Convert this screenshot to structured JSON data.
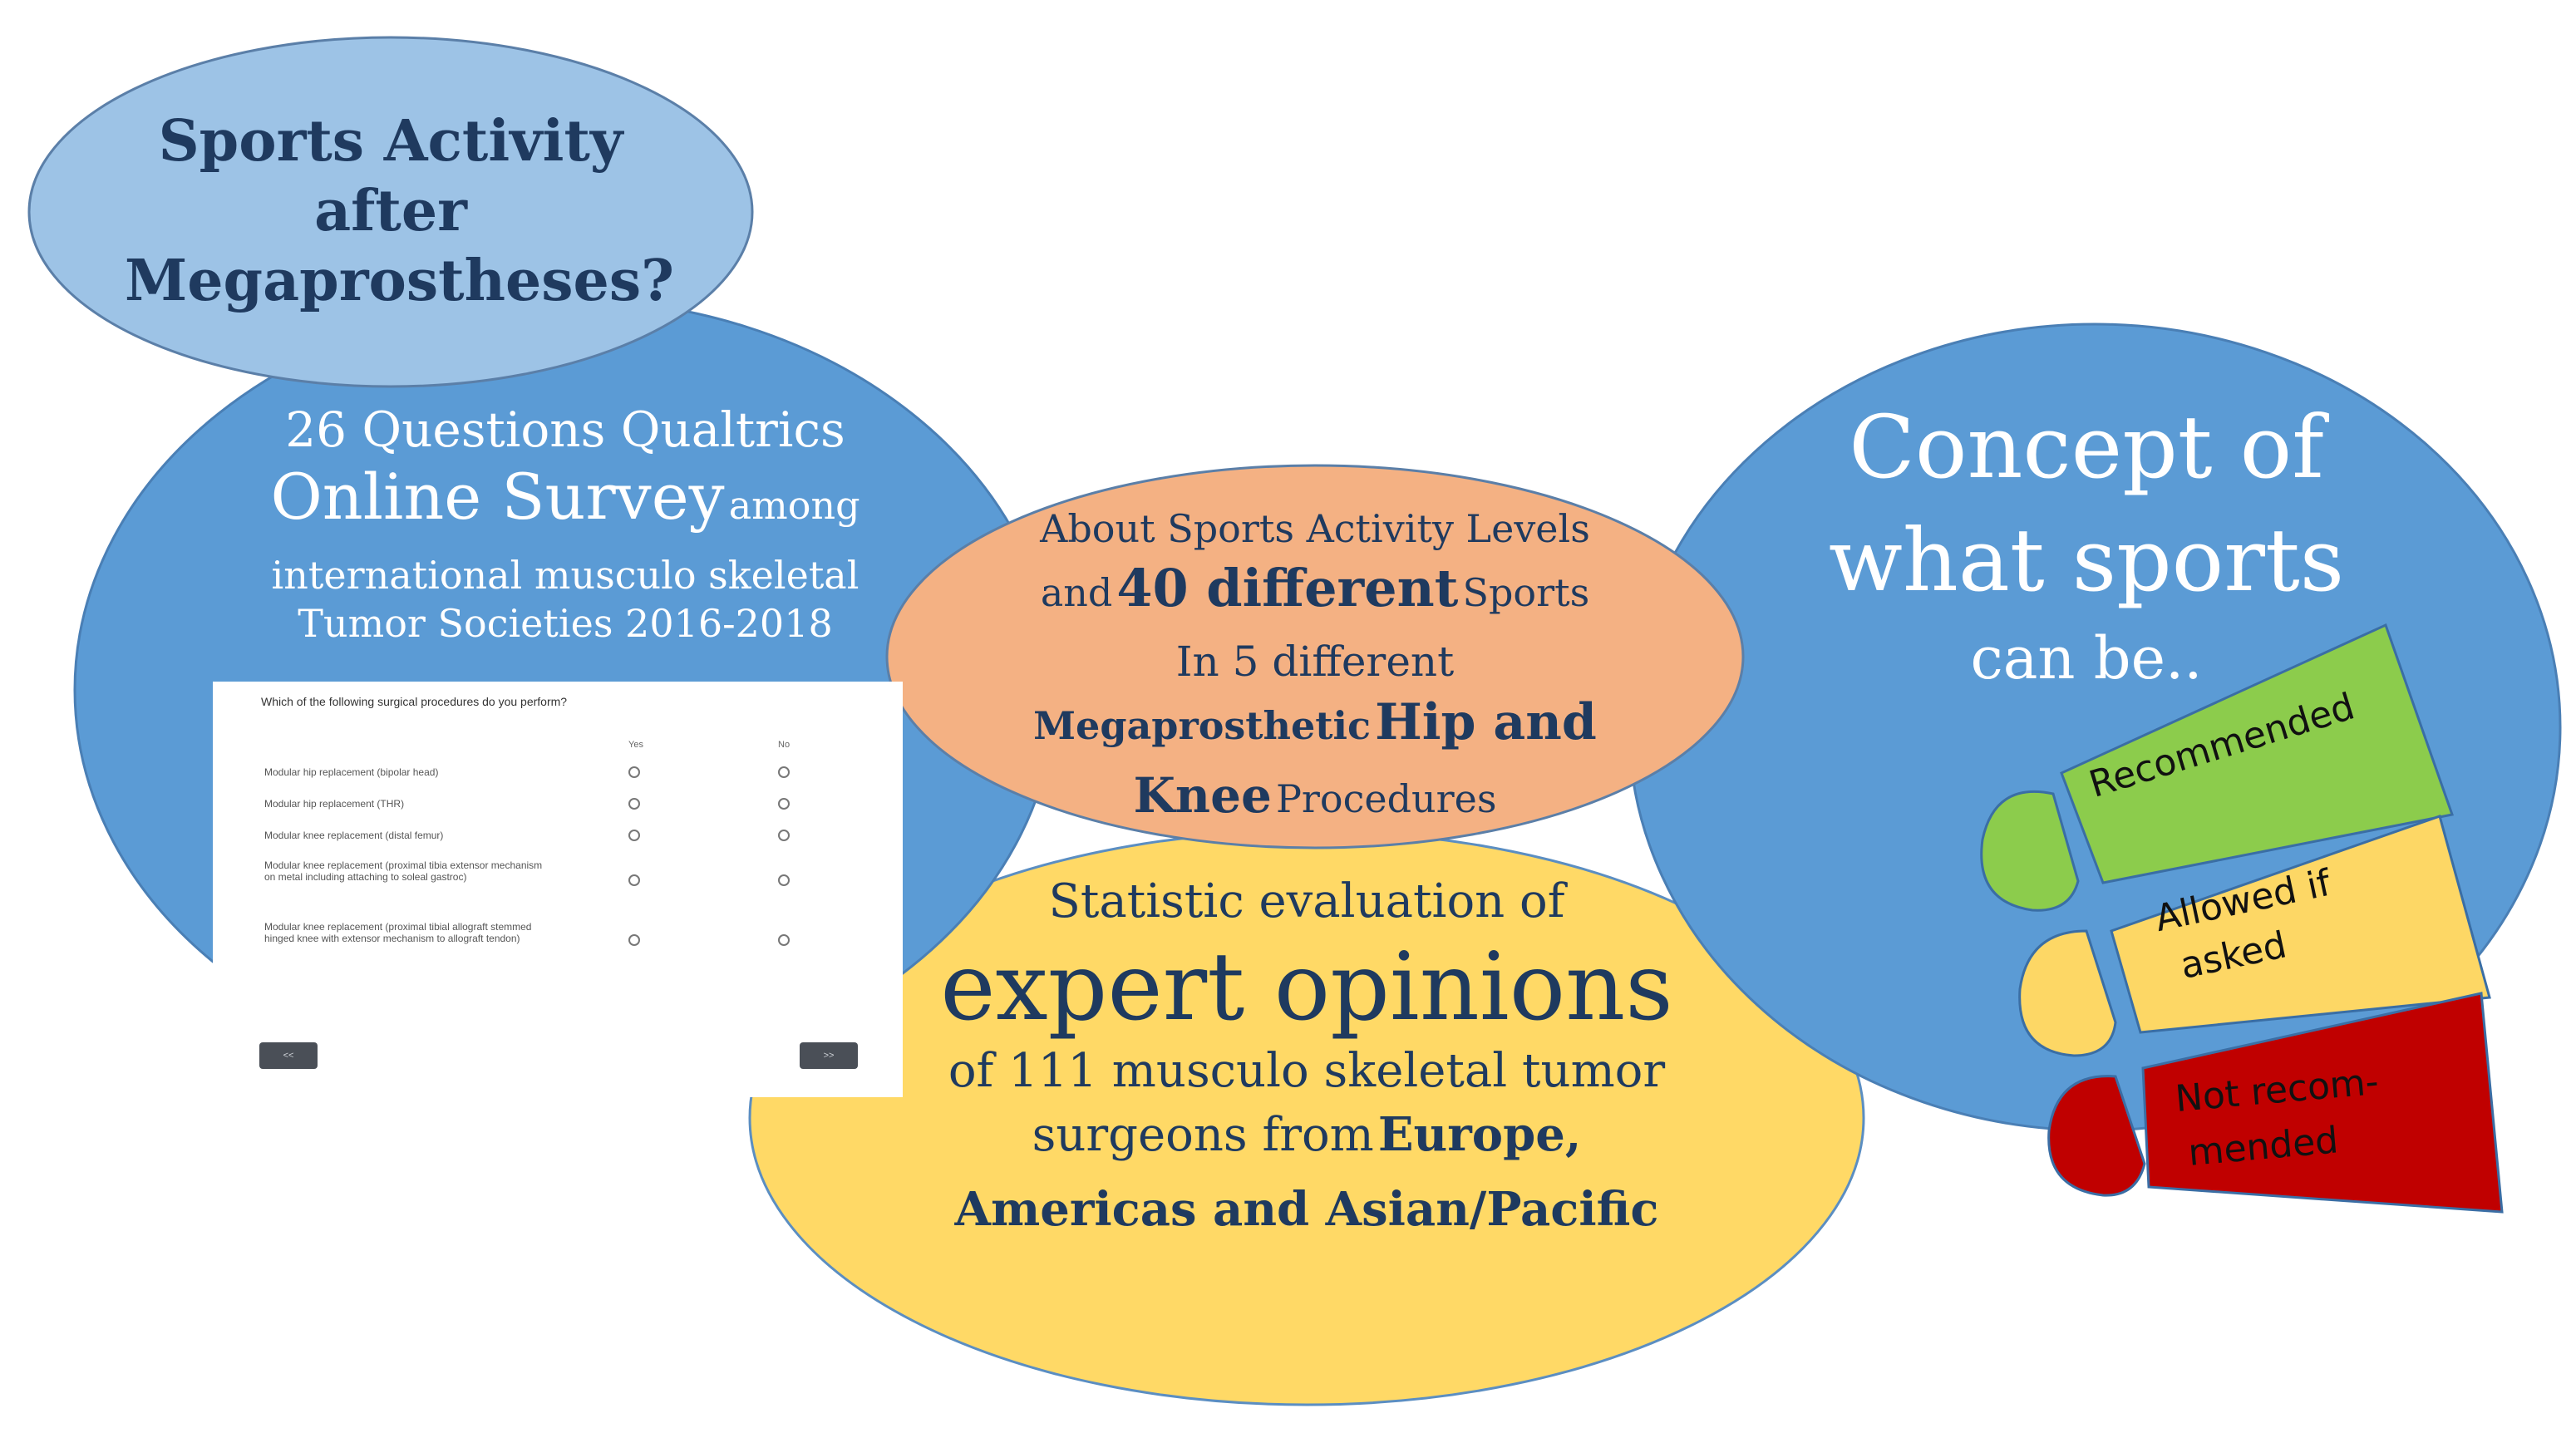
{
  "title_bubble": {
    "line1": "Sports Activity",
    "line2": "after",
    "line3": "Megaprostheses?"
  },
  "survey_circle": {
    "line1": "26 Questions Qualtrics",
    "big": "Online Survey",
    "small": "among",
    "line3": "international musculo skeletal",
    "line4": "Tumor Societies 2016-2018"
  },
  "survey_screenshot": {
    "question": "Which of the following surgical procedures do you perform?",
    "col_yes": "Yes",
    "col_no": "No",
    "rows": [
      "Modular hip replacement (bipolar head)",
      "Modular hip replacement (THR)",
      "Modular knee replacement (distal femur)",
      "Modular knee replacement (proximal tibia extensor mechanism on metal including attaching to soleal gastroc)",
      "Modular knee replacement (proximal tibial allograft stemmed hinged knee with extensor mechanism to allograft tendon)"
    ],
    "back_label": "<<",
    "next_label": ">>"
  },
  "about_oval": {
    "line1": "About Sports Activity Levels",
    "line2a": "and",
    "line2b": "40 different",
    "line2c": "Sports",
    "line3": "In 5 different",
    "line4a": "Megaprosthetic",
    "line4b": "Hip and",
    "line5a": "Knee",
    "line5b": "Procedures"
  },
  "expert_circle": {
    "line1": "Statistic evaluation of",
    "big": "expert opinions",
    "line3": "of 111 musculo skeletal tumor",
    "line4a": "surgeons from",
    "line4b": "Europe,",
    "line5": "Americas and Asian/Pacific"
  },
  "concept_circle": {
    "line1": "Concept of",
    "line2": "what sports",
    "line3": "can be.."
  },
  "footprints": [
    {
      "label": "Recommended",
      "color": "#8ccc4c"
    },
    {
      "label1": "Allowed if",
      "label2": "asked",
      "color": "#fdd765"
    },
    {
      "label1": "Not recom-",
      "label2": "mended",
      "color": "#c00000"
    }
  ],
  "colors": {
    "blue": "#5b9bd5",
    "light_blue": "#9dc3e6",
    "orange": "#f4b183",
    "yellow": "#ffd966",
    "navy_text": "#1f3a5f"
  }
}
